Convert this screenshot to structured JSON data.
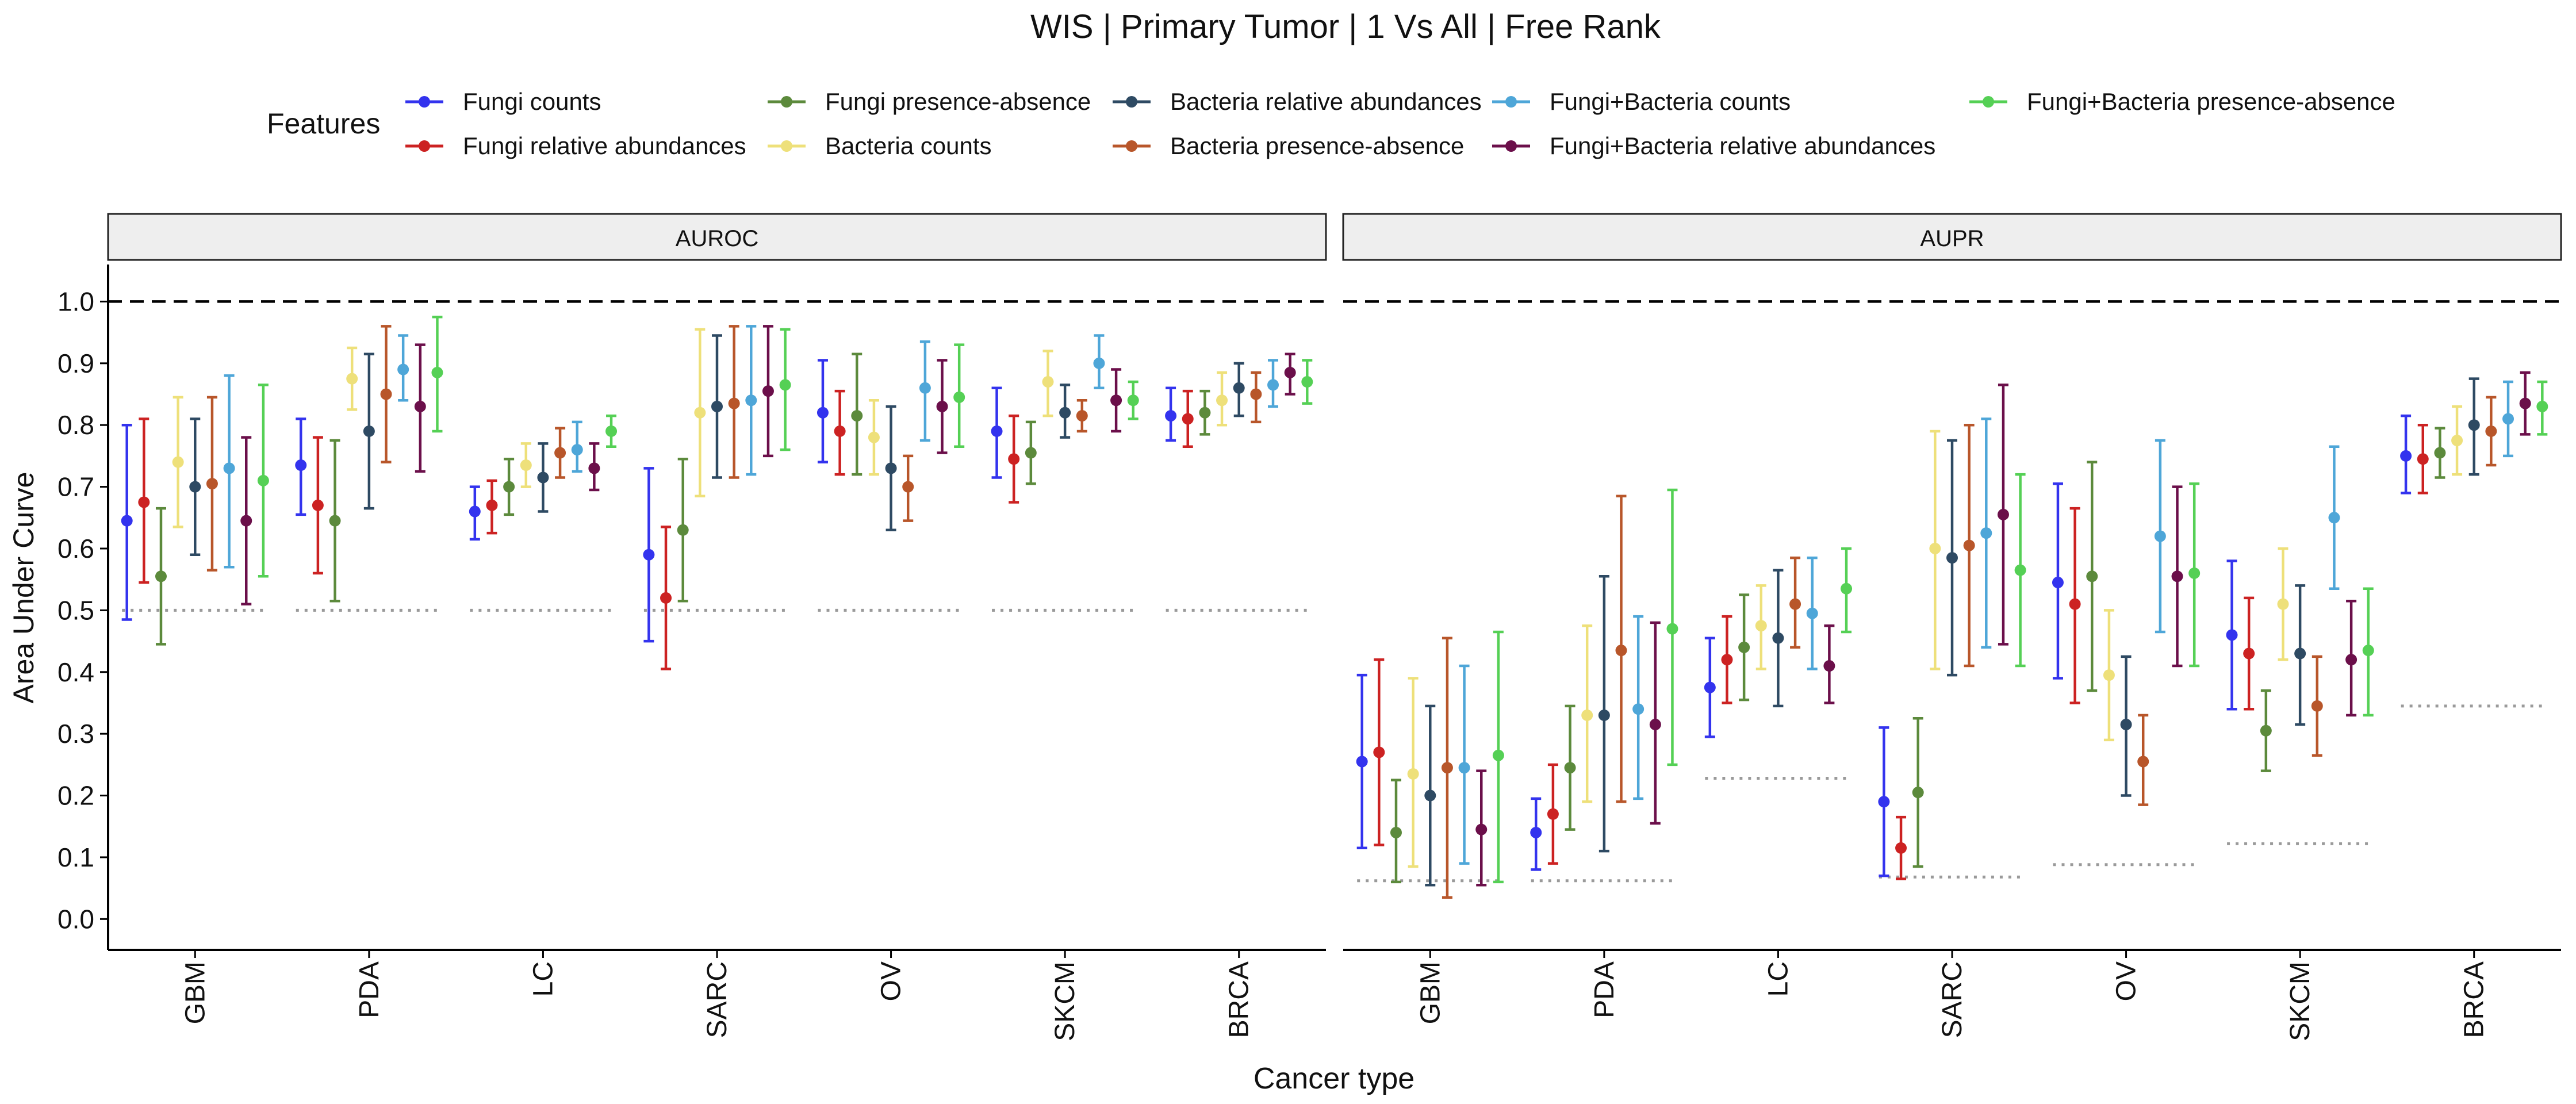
{
  "chart_data": {
    "type": "scatter",
    "title": "WIS | Primary Tumor | 1 Vs All | Free Rank",
    "xlabel": "Cancer type",
    "ylabel": "Area Under Curve",
    "ylim": [
      0,
      1
    ],
    "yticks": [
      "0.0",
      "0.1",
      "0.2",
      "0.3",
      "0.4",
      "0.5",
      "0.6",
      "0.7",
      "0.8",
      "0.9",
      "1.0"
    ],
    "categories": [
      "GBM",
      "PDA",
      "LC",
      "SARC",
      "OV",
      "SKCM",
      "BRCA"
    ],
    "legend_title": "Features",
    "legend_position": "top",
    "grid": false,
    "reference_line": 1.0,
    "series": [
      {
        "name": "Fungi counts",
        "color": "#3333ee"
      },
      {
        "name": "Fungi relative abundances",
        "color": "#cc2222"
      },
      {
        "name": "Fungi presence-absence",
        "color": "#5c8a3c"
      },
      {
        "name": "Bacteria counts",
        "color": "#eee07a"
      },
      {
        "name": "Bacteria relative abundances",
        "color": "#2e4a63"
      },
      {
        "name": "Bacteria presence-absence",
        "color": "#b8562a"
      },
      {
        "name": "Fungi+Bacteria counts",
        "color": "#4ea6d8"
      },
      {
        "name": "Fungi+Bacteria relative abundances",
        "color": "#6b0f4a"
      },
      {
        "name": "Fungi+Bacteria presence-absence",
        "color": "#55d055"
      }
    ],
    "panels": [
      {
        "name": "AUROC",
        "baseline": [
          0.5,
          0.5,
          0.5,
          0.5,
          0.5,
          0.5,
          0.5
        ],
        "points": [
          [
            [
              0.645,
              0.485,
              0.8
            ],
            [
              0.675,
              0.545,
              0.81
            ],
            [
              0.555,
              0.445,
              0.665
            ],
            [
              0.74,
              0.635,
              0.845
            ],
            [
              0.7,
              0.59,
              0.81
            ],
            [
              0.705,
              0.565,
              0.845
            ],
            [
              0.73,
              0.57,
              0.88
            ],
            [
              0.645,
              0.51,
              0.78
            ],
            [
              0.71,
              0.555,
              0.865
            ]
          ],
          [
            [
              0.735,
              0.655,
              0.81
            ],
            [
              0.67,
              0.56,
              0.78
            ],
            [
              0.645,
              0.515,
              0.775
            ],
            [
              0.875,
              0.825,
              0.925
            ],
            [
              0.79,
              0.665,
              0.915
            ],
            [
              0.85,
              0.74,
              0.96
            ],
            [
              0.89,
              0.84,
              0.945
            ],
            [
              0.83,
              0.725,
              0.93
            ],
            [
              0.885,
              0.79,
              0.975
            ]
          ],
          [
            [
              0.66,
              0.615,
              0.7
            ],
            [
              0.67,
              0.625,
              0.71
            ],
            [
              0.7,
              0.655,
              0.745
            ],
            [
              0.735,
              0.7,
              0.77
            ],
            [
              0.715,
              0.66,
              0.77
            ],
            [
              0.755,
              0.715,
              0.795
            ],
            [
              0.76,
              0.725,
              0.805
            ],
            [
              0.73,
              0.695,
              0.77
            ],
            [
              0.79,
              0.765,
              0.815
            ]
          ],
          [
            [
              0.59,
              0.45,
              0.73
            ],
            [
              0.52,
              0.405,
              0.635
            ],
            [
              0.63,
              0.515,
              0.745
            ],
            [
              0.82,
              0.685,
              0.955
            ],
            [
              0.83,
              0.715,
              0.945
            ],
            [
              0.835,
              0.715,
              0.96
            ],
            [
              0.84,
              0.72,
              0.96
            ],
            [
              0.855,
              0.75,
              0.96
            ],
            [
              0.865,
              0.76,
              0.955
            ]
          ],
          [
            [
              0.82,
              0.74,
              0.905
            ],
            [
              0.79,
              0.72,
              0.855
            ],
            [
              0.815,
              0.72,
              0.915
            ],
            [
              0.78,
              0.72,
              0.84
            ],
            [
              0.73,
              0.63,
              0.83
            ],
            [
              0.7,
              0.645,
              0.75
            ],
            [
              0.86,
              0.775,
              0.935
            ],
            [
              0.83,
              0.755,
              0.905
            ],
            [
              0.845,
              0.765,
              0.93
            ]
          ],
          [
            [
              0.79,
              0.715,
              0.86
            ],
            [
              0.745,
              0.675,
              0.815
            ],
            [
              0.755,
              0.705,
              0.805
            ],
            [
              0.87,
              0.815,
              0.92
            ],
            [
              0.82,
              0.78,
              0.865
            ],
            [
              0.815,
              0.79,
              0.84
            ],
            [
              0.9,
              0.86,
              0.945
            ],
            [
              0.84,
              0.79,
              0.89
            ],
            [
              0.84,
              0.81,
              0.87
            ]
          ],
          [
            [
              0.815,
              0.775,
              0.86
            ],
            [
              0.81,
              0.765,
              0.855
            ],
            [
              0.82,
              0.785,
              0.855
            ],
            [
              0.84,
              0.8,
              0.885
            ],
            [
              0.86,
              0.815,
              0.9
            ],
            [
              0.85,
              0.805,
              0.885
            ],
            [
              0.865,
              0.83,
              0.905
            ],
            [
              0.885,
              0.85,
              0.915
            ],
            [
              0.87,
              0.835,
              0.905
            ]
          ]
        ]
      },
      {
        "name": "AUPR",
        "baseline": [
          0.062,
          0.062,
          0.228,
          0.068,
          0.088,
          0.122,
          0.345
        ],
        "points": [
          [
            [
              0.255,
              0.115,
              0.395
            ],
            [
              0.27,
              0.12,
              0.42
            ],
            [
              0.14,
              0.06,
              0.225
            ],
            [
              0.235,
              0.085,
              0.39
            ],
            [
              0.2,
              0.055,
              0.345
            ],
            [
              0.245,
              0.035,
              0.455
            ],
            [
              0.245,
              0.09,
              0.41
            ],
            [
              0.145,
              0.055,
              0.24
            ],
            [
              0.265,
              0.06,
              0.465
            ]
          ],
          [
            [
              0.14,
              0.08,
              0.195
            ],
            [
              0.17,
              0.09,
              0.25
            ],
            [
              0.245,
              0.145,
              0.345
            ],
            [
              0.33,
              0.19,
              0.475
            ],
            [
              0.33,
              0.11,
              0.555
            ],
            [
              0.435,
              0.19,
              0.685
            ],
            [
              0.34,
              0.195,
              0.49
            ],
            [
              0.315,
              0.155,
              0.48
            ],
            [
              0.47,
              0.25,
              0.695
            ]
          ],
          [
            [
              0.375,
              0.295,
              0.455
            ],
            [
              0.42,
              0.35,
              0.49
            ],
            [
              0.44,
              0.355,
              0.525
            ],
            [
              0.475,
              0.405,
              0.54
            ],
            [
              0.455,
              0.345,
              0.565
            ],
            [
              0.51,
              0.44,
              0.585
            ],
            [
              0.495,
              0.405,
              0.585
            ],
            [
              0.41,
              0.35,
              0.475
            ],
            [
              0.535,
              0.465,
              0.6
            ]
          ],
          [
            [
              0.19,
              0.07,
              0.31
            ],
            [
              0.115,
              0.065,
              0.165
            ],
            [
              0.205,
              0.085,
              0.325
            ],
            [
              0.6,
              0.405,
              0.79
            ],
            [
              0.585,
              0.395,
              0.775
            ],
            [
              0.605,
              0.41,
              0.8
            ],
            [
              0.625,
              0.44,
              0.81
            ],
            [
              0.655,
              0.445,
              0.865
            ],
            [
              0.565,
              0.41,
              0.72
            ]
          ],
          [
            [
              0.545,
              0.39,
              0.705
            ],
            [
              0.51,
              0.35,
              0.665
            ],
            [
              0.555,
              0.37,
              0.74
            ],
            [
              0.395,
              0.29,
              0.5
            ],
            [
              0.315,
              0.2,
              0.425
            ],
            [
              0.255,
              0.185,
              0.33
            ],
            [
              0.62,
              0.465,
              0.775
            ],
            [
              0.555,
              0.41,
              0.7
            ],
            [
              0.56,
              0.41,
              0.705
            ]
          ],
          [
            [
              0.46,
              0.34,
              0.58
            ],
            [
              0.43,
              0.34,
              0.52
            ],
            [
              0.305,
              0.24,
              0.37
            ],
            [
              0.51,
              0.42,
              0.6
            ],
            [
              0.43,
              0.315,
              0.54
            ],
            [
              0.345,
              0.265,
              0.425
            ],
            [
              0.65,
              0.535,
              0.765
            ],
            [
              0.42,
              0.33,
              0.515
            ],
            [
              0.435,
              0.33,
              0.535
            ]
          ],
          [
            [
              0.75,
              0.69,
              0.815
            ],
            [
              0.745,
              0.69,
              0.8
            ],
            [
              0.755,
              0.715,
              0.795
            ],
            [
              0.775,
              0.72,
              0.83
            ],
            [
              0.8,
              0.72,
              0.875
            ],
            [
              0.79,
              0.735,
              0.845
            ],
            [
              0.81,
              0.75,
              0.87
            ],
            [
              0.835,
              0.785,
              0.885
            ],
            [
              0.83,
              0.785,
              0.87
            ]
          ]
        ]
      }
    ]
  }
}
